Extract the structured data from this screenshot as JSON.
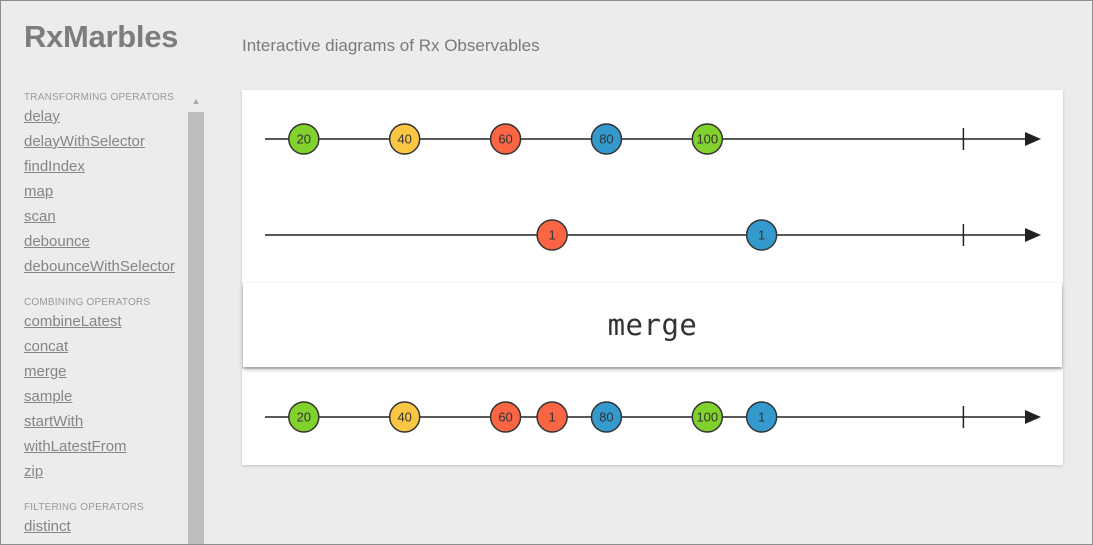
{
  "header": {
    "logo": "RxMarbles",
    "subtitle": "Interactive diagrams of Rx Observables"
  },
  "sidebar": {
    "groups": [
      {
        "title": "TRANSFORMING OPERATORS",
        "items": [
          "delay",
          "delayWithSelector",
          "findIndex",
          "map",
          "scan",
          "debounce",
          "debounceWithSelector"
        ]
      },
      {
        "title": "COMBINING OPERATORS",
        "items": [
          "combineLatest",
          "concat",
          "merge",
          "sample",
          "startWith",
          "withLatestFrom",
          "zip"
        ]
      },
      {
        "title": "FILTERING OPERATORS",
        "items": [
          "distinct"
        ]
      }
    ],
    "scroll_up_icon": "triangle-up"
  },
  "diagram": {
    "operator": "merge",
    "timeline_length": 100,
    "end_time": 90,
    "colors": {
      "green": "#81d22c",
      "yellow": "#fbc743",
      "red": "#fa6543",
      "blue": "#3499cd"
    },
    "inputs": [
      {
        "marbles": [
          {
            "time": 5,
            "label": "20",
            "color": "green"
          },
          {
            "time": 18,
            "label": "40",
            "color": "yellow"
          },
          {
            "time": 31,
            "label": "60",
            "color": "red"
          },
          {
            "time": 44,
            "label": "80",
            "color": "blue"
          },
          {
            "time": 57,
            "label": "100",
            "color": "green"
          }
        ]
      },
      {
        "marbles": [
          {
            "time": 37,
            "label": "1",
            "color": "red"
          },
          {
            "time": 64,
            "label": "1",
            "color": "blue"
          }
        ]
      }
    ],
    "output": {
      "marbles": [
        {
          "time": 5,
          "label": "20",
          "color": "green"
        },
        {
          "time": 18,
          "label": "40",
          "color": "yellow"
        },
        {
          "time": 31,
          "label": "60",
          "color": "red"
        },
        {
          "time": 37,
          "label": "1",
          "color": "red"
        },
        {
          "time": 44,
          "label": "80",
          "color": "blue"
        },
        {
          "time": 57,
          "label": "100",
          "color": "green"
        },
        {
          "time": 64,
          "label": "1",
          "color": "blue"
        }
      ]
    }
  }
}
